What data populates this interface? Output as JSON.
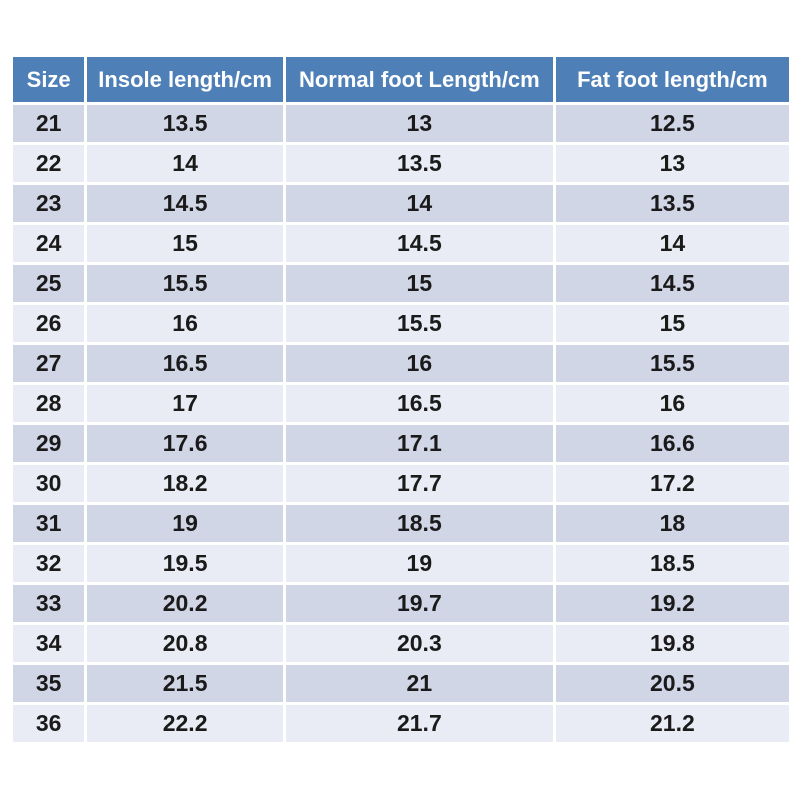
{
  "style": {
    "page_bg": "#FFFFFF",
    "header_bg": "#4E80B7",
    "header_text": "#FFFFFF",
    "row_band_dark": "#D1D6E7",
    "row_band_light": "#E9ECF4",
    "cell_text": "#1A1A1A",
    "separator": "#FFFFFF"
  },
  "chart_data": {
    "type": "table",
    "title": "",
    "columns": [
      "Size",
      "Insole length/cm",
      "Normal foot Length/cm",
      "Fat foot length/cm"
    ],
    "rows": [
      [
        21,
        13.5,
        13,
        12.5
      ],
      [
        22,
        14,
        13.5,
        13
      ],
      [
        23,
        14.5,
        14,
        13.5
      ],
      [
        24,
        15,
        14.5,
        14
      ],
      [
        25,
        15.5,
        15,
        14.5
      ],
      [
        26,
        16,
        15.5,
        15
      ],
      [
        27,
        16.5,
        16,
        15.5
      ],
      [
        28,
        17,
        16.5,
        16
      ],
      [
        29,
        17.6,
        17.1,
        16.6
      ],
      [
        30,
        18.2,
        17.7,
        17.2
      ],
      [
        31,
        19,
        18.5,
        18
      ],
      [
        32,
        19.5,
        19,
        18.5
      ],
      [
        33,
        20.2,
        19.7,
        19.2
      ],
      [
        34,
        20.8,
        20.3,
        19.8
      ],
      [
        35,
        21.5,
        21,
        20.5
      ],
      [
        36,
        22.2,
        21.7,
        21.2
      ]
    ]
  }
}
